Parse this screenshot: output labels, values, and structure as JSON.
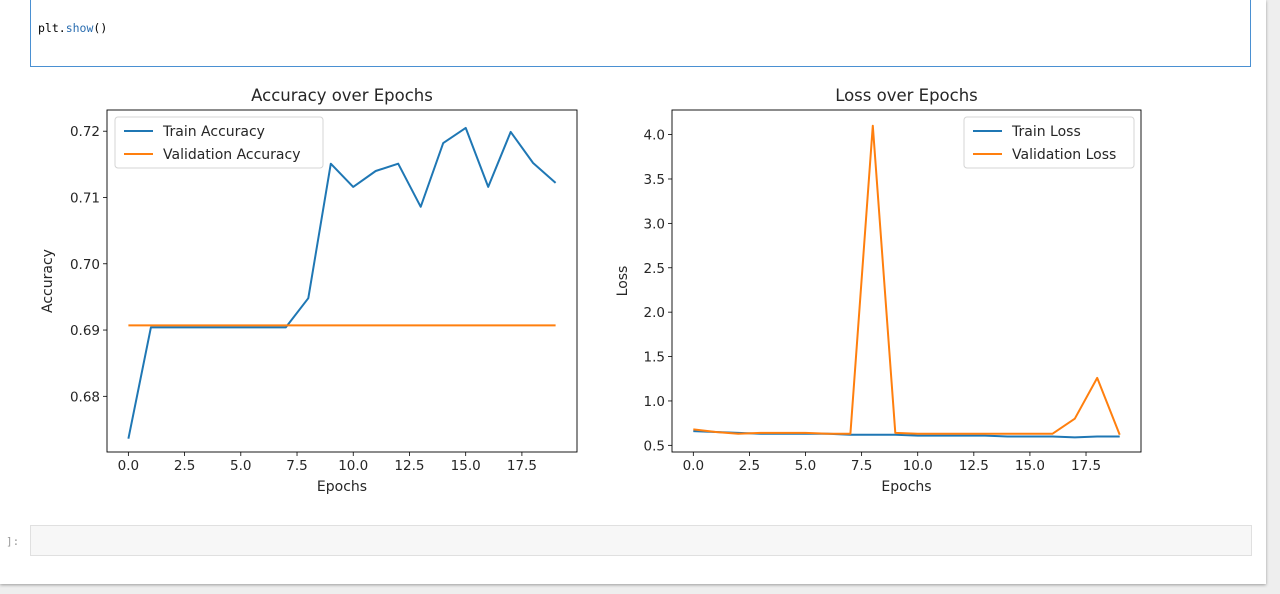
{
  "code_cell": {
    "fn_prefix": "plt.",
    "fn_name": "show",
    "fn_suffix": "()"
  },
  "empty_cell": {
    "prompt": "]:"
  },
  "chart_data": [
    {
      "type": "line",
      "title": "Accuracy over Epochs",
      "xlabel": "Epochs",
      "ylabel": "Accuracy",
      "xlim": [
        -0.95,
        19.95
      ],
      "ylim": [
        0.6716,
        0.7232
      ],
      "xticks": [
        0.0,
        2.5,
        5.0,
        7.5,
        10.0,
        12.5,
        15.0,
        17.5
      ],
      "xtick_labels": [
        "0.0",
        "2.5",
        "5.0",
        "7.5",
        "10.0",
        "12.5",
        "15.0",
        "17.5"
      ],
      "yticks": [
        0.68,
        0.69,
        0.7,
        0.71,
        0.72
      ],
      "ytick_labels": [
        "0.68",
        "0.69",
        "0.70",
        "0.71",
        "0.72"
      ],
      "legend_position": "upper-left",
      "x": [
        0,
        1,
        2,
        3,
        4,
        5,
        6,
        7,
        8,
        9,
        10,
        11,
        12,
        13,
        14,
        15,
        16,
        17,
        18,
        19
      ],
      "series": [
        {
          "name": "Train Accuracy",
          "color": "#1f77b4",
          "values": [
            0.6736,
            0.6904,
            0.6904,
            0.6904,
            0.6904,
            0.6904,
            0.6904,
            0.6904,
            0.6948,
            0.7151,
            0.7116,
            0.714,
            0.7151,
            0.7086,
            0.7182,
            0.7205,
            0.7116,
            0.7199,
            0.7152,
            0.7122
          ]
        },
        {
          "name": "Validation Accuracy",
          "color": "#ff7f0e",
          "values": [
            0.6907,
            0.6907,
            0.6907,
            0.6907,
            0.6907,
            0.6907,
            0.6907,
            0.6907,
            0.6907,
            0.6907,
            0.6907,
            0.6907,
            0.6907,
            0.6907,
            0.6907,
            0.6907,
            0.6907,
            0.6907,
            0.6907,
            0.6907
          ]
        }
      ]
    },
    {
      "type": "line",
      "title": "Loss over Epochs",
      "xlabel": "Epochs",
      "ylabel": "Loss",
      "xlim": [
        -0.95,
        19.95
      ],
      "ylim": [
        0.425,
        4.277
      ],
      "xticks": [
        0.0,
        2.5,
        5.0,
        7.5,
        10.0,
        12.5,
        15.0,
        17.5
      ],
      "xtick_labels": [
        "0.0",
        "2.5",
        "5.0",
        "7.5",
        "10.0",
        "12.5",
        "15.0",
        "17.5"
      ],
      "yticks": [
        0.5,
        1.0,
        1.5,
        2.0,
        2.5,
        3.0,
        3.5,
        4.0
      ],
      "ytick_labels": [
        "0.5",
        "1.0",
        "1.5",
        "2.0",
        "2.5",
        "3.0",
        "3.5",
        "4.0"
      ],
      "legend_position": "upper-right",
      "x": [
        0,
        1,
        2,
        3,
        4,
        5,
        6,
        7,
        8,
        9,
        10,
        11,
        12,
        13,
        14,
        15,
        16,
        17,
        18,
        19
      ],
      "series": [
        {
          "name": "Train Loss",
          "color": "#1f77b4",
          "values": [
            0.66,
            0.65,
            0.64,
            0.63,
            0.63,
            0.63,
            0.63,
            0.62,
            0.62,
            0.62,
            0.61,
            0.61,
            0.61,
            0.61,
            0.6,
            0.6,
            0.6,
            0.59,
            0.6,
            0.6
          ]
        },
        {
          "name": "Validation Loss",
          "color": "#ff7f0e",
          "values": [
            0.68,
            0.65,
            0.63,
            0.64,
            0.64,
            0.64,
            0.63,
            0.63,
            4.1,
            0.64,
            0.63,
            0.63,
            0.63,
            0.63,
            0.63,
            0.63,
            0.63,
            0.8,
            1.26,
            0.62
          ]
        }
      ]
    }
  ]
}
